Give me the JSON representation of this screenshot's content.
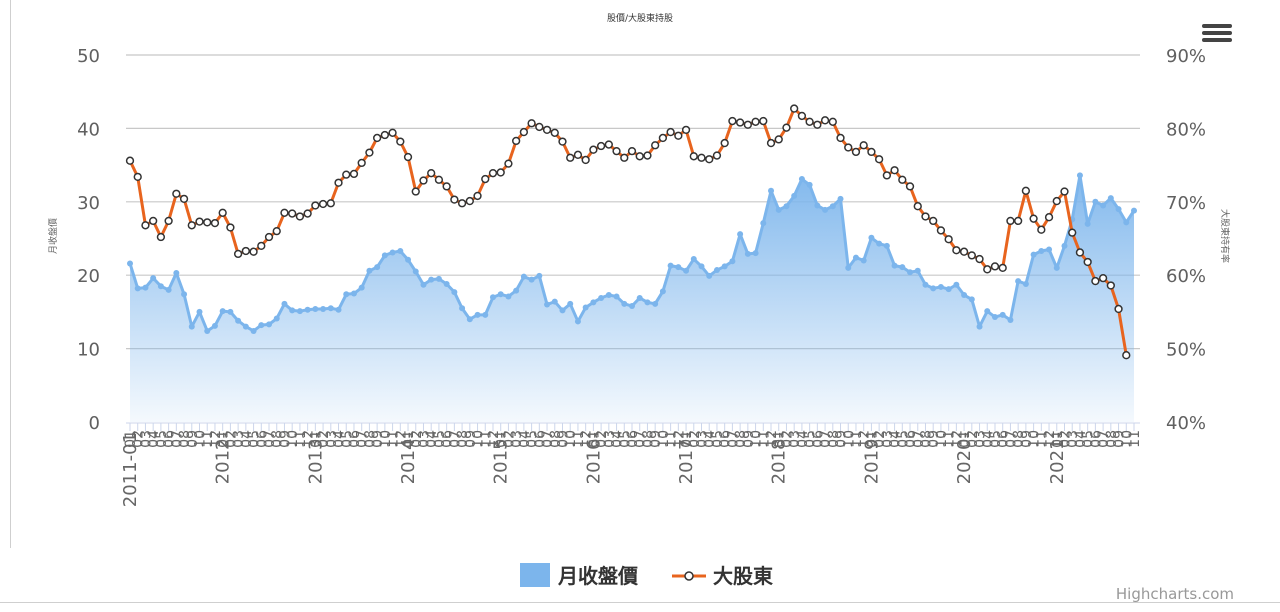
{
  "chart_data": {
    "type": "area+line",
    "title": "股價/大股東持股",
    "credits": "Highcharts.com",
    "menu_icon": "hamburger-menu-icon",
    "y_left": {
      "label": "月收盤價",
      "min": 0,
      "max": 50,
      "ticks": [
        "0",
        "10",
        "20",
        "30",
        "40",
        "50"
      ]
    },
    "y_right": {
      "label": "大股東持有率",
      "min": 40,
      "max": 90,
      "ticks": [
        "40%",
        "50%",
        "60%",
        "70%",
        "80%",
        "90%"
      ]
    },
    "x_axis": {
      "tick_format": "YYYY-MM",
      "year_labels": [
        "2011-01",
        "2012-",
        "2013-",
        "2014-",
        "2015-",
        "2016-",
        "2017-",
        "2018-",
        "2019-",
        "2020-",
        "2021-"
      ]
    },
    "legend": {
      "placement": "bottom-center",
      "items": [
        {
          "name": "月收盤價",
          "symbol": "area"
        },
        {
          "name": "大股東",
          "symbol": "line-marker"
        }
      ]
    },
    "colors": {
      "area_fill": "#7cb5ec",
      "area_line": "#7cb5ec",
      "holder_line": "#e8641e",
      "marker_stroke": "#333333",
      "grid": "#c8c8c8",
      "axis_text": "#606060"
    },
    "series": [
      {
        "name": "月收盤價",
        "axis": "left",
        "start": "2011-01",
        "interval": "month",
        "values": [
          21.6,
          18.2,
          18.3,
          19.6,
          18.5,
          18.0,
          20.3,
          17.4,
          13.0,
          15.0,
          12.4,
          13.1,
          15.1,
          15.0,
          13.8,
          13.0,
          12.4,
          13.2,
          13.3,
          14.1,
          16.1,
          15.2,
          15.1,
          15.3,
          15.4,
          15.4,
          15.5,
          15.3,
          17.4,
          17.5,
          18.3,
          20.6,
          21.1,
          22.7,
          23.1,
          23.3,
          22.1,
          20.5,
          18.7,
          19.4,
          19.5,
          18.8,
          17.7,
          15.5,
          14.0,
          14.6,
          14.6,
          17.0,
          17.4,
          17.1,
          17.9,
          19.8,
          19.4,
          19.9,
          16.0,
          16.4,
          15.2,
          16.1,
          13.7,
          15.6,
          16.3,
          16.9,
          17.3,
          17.1,
          16.1,
          15.8,
          16.9,
          16.3,
          16.1,
          17.8,
          21.3,
          21.1,
          20.6,
          22.2,
          21.2,
          19.9,
          20.7,
          21.2,
          21.9,
          25.6,
          22.9,
          23.0,
          27.1,
          31.5,
          28.9,
          29.4,
          30.8,
          33.1,
          32.3,
          29.5,
          28.9,
          29.4,
          30.4,
          21.0,
          22.4,
          22.0,
          25.1,
          24.3,
          24.0,
          21.3,
          21.1,
          20.4,
          20.6,
          18.7,
          18.2,
          18.4,
          18.1,
          18.7,
          17.3,
          16.7,
          13.0,
          15.1,
          14.3,
          14.6,
          13.9,
          19.2,
          18.8,
          22.8,
          23.3,
          23.5,
          21.0,
          24.0,
          27.6,
          33.6,
          27.0,
          30.0,
          29.5,
          30.5,
          29.0,
          27.2,
          28.8
        ]
      },
      {
        "name": "大股東",
        "axis": "right",
        "start": "2011-01",
        "interval": "month",
        "values": [
          75.6,
          73.4,
          66.8,
          67.4,
          65.2,
          67.4,
          71.1,
          70.4,
          66.8,
          67.3,
          67.2,
          67.1,
          68.5,
          66.5,
          62.9,
          63.3,
          63.2,
          64.0,
          65.2,
          66.0,
          68.5,
          68.4,
          68.0,
          68.4,
          69.5,
          69.7,
          69.8,
          72.6,
          73.7,
          73.8,
          75.3,
          76.7,
          78.7,
          79.1,
          79.4,
          78.2,
          76.1,
          71.4,
          72.9,
          73.9,
          73.0,
          72.1,
          70.3,
          69.8,
          70.1,
          70.8,
          73.1,
          73.9,
          74.0,
          75.2,
          78.3,
          79.5,
          80.7,
          80.2,
          79.8,
          79.4,
          78.2,
          76.0,
          76.4,
          75.7,
          77.1,
          77.6,
          77.8,
          76.9,
          76.0,
          76.9,
          76.2,
          76.3,
          77.7,
          78.7,
          79.5,
          79.0,
          79.8,
          76.2,
          76.0,
          75.8,
          76.3,
          78.0,
          81.0,
          80.8,
          80.5,
          80.9,
          81.0,
          78.0,
          78.5,
          80.1,
          82.7,
          81.7,
          80.9,
          80.5,
          81.1,
          80.9,
          78.7,
          77.4,
          76.8,
          77.7,
          76.8,
          75.8,
          73.6,
          74.3,
          73.0,
          72.1,
          69.4,
          68.0,
          67.4,
          66.1,
          64.9,
          63.4,
          63.2,
          62.7,
          62.2,
          60.8,
          61.2,
          61.0,
          67.4,
          67.4,
          71.5,
          67.7,
          66.2,
          67.9,
          70.1,
          71.4,
          65.8,
          63.1,
          61.8,
          59.2,
          59.6,
          58.6,
          55.4,
          49.1
        ]
      }
    ]
  }
}
